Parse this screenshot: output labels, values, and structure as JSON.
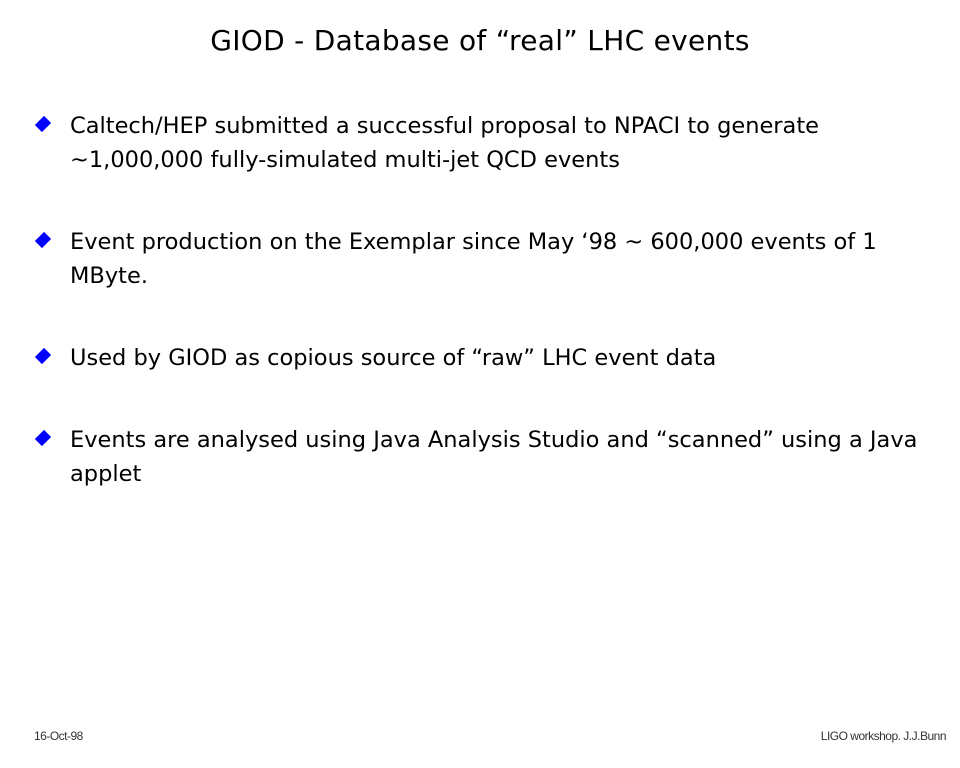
{
  "slide": {
    "title": "GIOD - Database of “real” LHC events",
    "bullet_color": "#0000ff",
    "bullet_icon": "diamond",
    "bullets": [
      "Caltech/HEP submitted a successful proposal to NPACI to generate ~1,000,000 fully-simulated multi-jet QCD events",
      "Event production on the Exemplar since May ‘98 ~ 600,000 events of 1 MByte.",
      "Used by GIOD as copious source of “raw” LHC event data",
      "Events are analysed using Java Analysis Studio and “scanned” using a Java applet"
    ]
  },
  "footer": {
    "date": "16-Oct-98",
    "credit": "LIGO workshop. J.J.Bunn"
  }
}
